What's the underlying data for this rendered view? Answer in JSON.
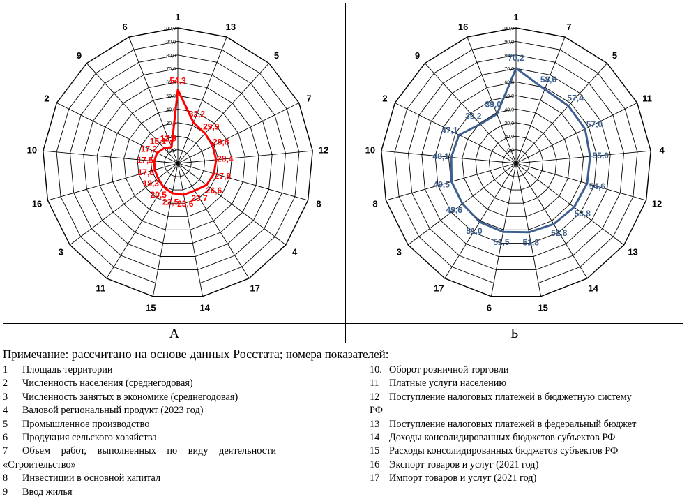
{
  "note": {
    "lead": "Примечание:",
    "main": "рассчитано на основе данных Росстата",
    "tail": "; номера показателей:"
  },
  "panels": {
    "a_label": "А",
    "b_label": "Б"
  },
  "legend": {
    "left": [
      {
        "num": "1",
        "text": "Площадь территории"
      },
      {
        "num": "2",
        "text": "Численность населения (среднегодовая)"
      },
      {
        "num": "3",
        "text": "Численность занятых в экономике (среднегодовая)"
      },
      {
        "num": "4",
        "text": "Валовой региональный продукт (2023 год)"
      },
      {
        "num": "5",
        "text": "Промышленное производство"
      },
      {
        "num": "6",
        "text": "Продукция сельского хозяйства"
      },
      {
        "num": "7",
        "text": "Объем работ, выполненных по виду деятельности",
        "cont": "«Строительство»"
      },
      {
        "num": "8",
        "text": "Инвестиции в основной капитал"
      },
      {
        "num": "9",
        "text": "Ввод жилья"
      }
    ],
    "right": [
      {
        "num": "10.",
        "text": "Оборот розничной торговли"
      },
      {
        "num": "11",
        "text": "Платные услуги населению"
      },
      {
        "num": "12",
        "text": "Поступление налоговых платежей в бюджетную систему",
        "cont": "РФ"
      },
      {
        "num": "13",
        "text": "Поступление налоговых платежей в федеральный бюджет"
      },
      {
        "num": "14",
        "text": "Доходы консолидированных бюджетов субъектов РФ"
      },
      {
        "num": "15",
        "text": "Расходы консолидированных бюджетов субъектов РФ"
      },
      {
        "num": "16",
        "text": "Экспорт товаров и услуг (2021 год)"
      },
      {
        "num": "17",
        "text": "Импорт товаров и услуг (2021 год)"
      }
    ]
  },
  "chart_data": [
    {
      "type": "radar",
      "panel": "А",
      "color": "#ff0000",
      "rmax": 100,
      "ticks": [
        "10,0",
        "20,0",
        "30,0",
        "40,0",
        "50,0",
        "60,0",
        "70,0",
        "80,0",
        "90,0",
        "100,0"
      ],
      "categories": [
        "1",
        "13",
        "5",
        "7",
        "12",
        "8",
        "4",
        "17",
        "14",
        "15",
        "11",
        "3",
        "16",
        "10",
        "2",
        "9",
        "6"
      ],
      "values": [
        54.3,
        32.2,
        29.9,
        28.8,
        28.4,
        27.8,
        26.6,
        23.7,
        23.6,
        22.5,
        20.5,
        18.3,
        17.8,
        17.5,
        17.2,
        15.1,
        12.9
      ],
      "value_labels": [
        "54,3",
        "32,2",
        "29,9",
        "28,8",
        "28,4",
        "27,8",
        "26,6",
        "23,7",
        "23,6",
        "22,5",
        "20,5",
        "18,3",
        "17,8",
        "17,5",
        "17,2",
        "15,1",
        "12,9"
      ]
    },
    {
      "type": "radar",
      "panel": "Б",
      "color": "#3c5f8f",
      "rmax": 100,
      "ticks": [
        "10,0",
        "20,0",
        "30,0",
        "40,0",
        "50,0",
        "60,0",
        "70,0",
        "80,0",
        "90,0",
        "100,0"
      ],
      "categories": [
        "1",
        "7",
        "5",
        "11",
        "4",
        "12",
        "13",
        "14",
        "15",
        "6",
        "17",
        "3",
        "8",
        "10",
        "2",
        "9",
        "16"
      ],
      "values": [
        70.2,
        58.6,
        57.4,
        57.0,
        55.0,
        54.6,
        53.8,
        52.8,
        51.8,
        51.5,
        51.0,
        49.6,
        49.5,
        48.1,
        47.1,
        39.2,
        39.0
      ],
      "value_labels": [
        "70,2",
        "58,6",
        "57,4",
        "57,0",
        "55,0",
        "54,6",
        "53,8",
        "52,8",
        "51,8",
        "51,5",
        "51,0",
        "49,6",
        "49,5",
        "48,1",
        "47,1",
        "39,2",
        "39,0"
      ]
    }
  ]
}
